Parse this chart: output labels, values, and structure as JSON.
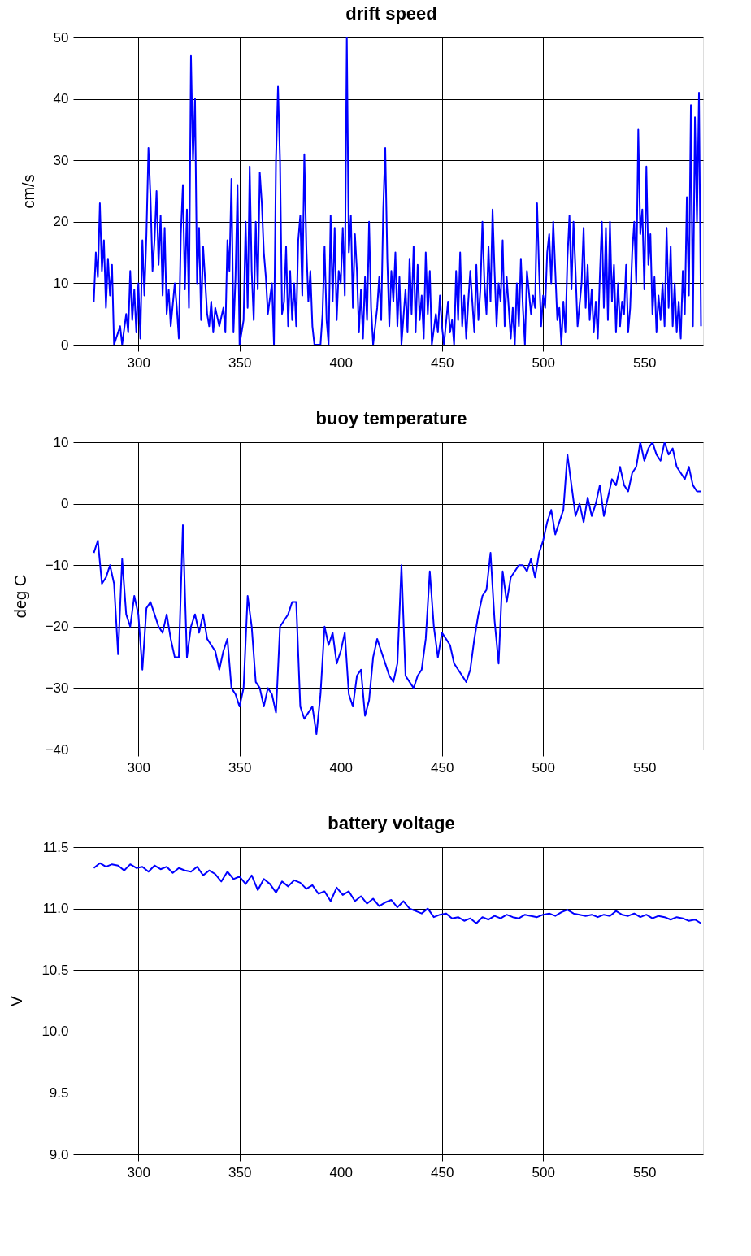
{
  "chart_data": [
    {
      "type": "line",
      "title": "drift speed",
      "ylabel": "cm/s",
      "xlim": [
        271,
        579
      ],
      "ylim": [
        0,
        50
      ],
      "xticks": [
        300,
        350,
        400,
        450,
        500,
        550
      ],
      "yticks": [
        0,
        10,
        20,
        30,
        40,
        50
      ],
      "grid": true,
      "x": [
        278,
        279,
        280,
        281,
        282,
        283,
        284,
        285,
        286,
        287,
        288,
        289,
        291,
        292,
        294,
        295,
        296,
        297,
        298,
        299,
        300,
        301,
        302,
        303,
        304,
        305,
        306,
        307,
        308,
        309,
        310,
        311,
        312,
        313,
        314,
        315,
        316,
        318,
        319,
        320,
        321,
        322,
        323,
        324,
        325,
        326,
        327,
        328,
        329,
        330,
        331,
        332,
        334,
        335,
        336,
        337,
        338,
        340,
        342,
        343,
        344,
        345,
        346,
        347,
        348,
        349,
        350,
        352,
        353,
        354,
        355,
        356,
        357,
        358,
        359,
        360,
        361,
        362,
        363,
        364,
        366,
        367,
        368,
        369,
        370,
        371,
        372,
        373,
        374,
        375,
        376,
        377,
        378,
        379,
        380,
        381,
        382,
        383,
        384,
        385,
        386,
        387,
        390,
        391,
        392,
        393,
        394,
        395,
        396,
        397,
        398,
        399,
        400,
        401,
        402,
        403,
        404,
        405,
        406,
        407,
        408,
        409,
        410,
        411,
        412,
        413,
        414,
        415,
        416,
        418,
        419,
        420,
        421,
        422,
        423,
        424,
        425,
        426,
        427,
        428,
        429,
        430,
        432,
        433,
        434,
        435,
        436,
        437,
        438,
        439,
        440,
        441,
        442,
        443,
        444,
        445,
        447,
        448,
        449,
        450,
        451,
        453,
        454,
        455,
        456,
        457,
        458,
        459,
        460,
        461,
        462,
        463,
        464,
        466,
        467,
        468,
        469,
        470,
        471,
        472,
        473,
        474,
        475,
        476,
        477,
        478,
        479,
        480,
        481,
        482,
        484,
        485,
        486,
        487,
        488,
        489,
        490,
        491,
        492,
        494,
        495,
        496,
        497,
        498,
        499,
        500,
        501,
        502,
        503,
        504,
        505,
        506,
        507,
        508,
        509,
        510,
        511,
        512,
        513,
        514,
        515,
        516,
        517,
        519,
        520,
        521,
        522,
        523,
        524,
        525,
        526,
        527,
        528,
        529,
        530,
        531,
        532,
        533,
        534,
        535,
        536,
        537,
        538,
        539,
        540,
        541,
        542,
        543,
        544,
        545,
        546,
        547,
        548,
        549,
        550,
        551,
        552,
        553,
        554,
        555,
        556,
        557,
        558,
        559,
        560,
        561,
        562,
        563,
        564,
        565,
        566,
        567,
        568,
        569,
        570,
        571,
        572,
        573,
        574,
        575,
        576,
        577,
        578
      ],
      "series": [
        {
          "color": "#0000ff",
          "values": [
            7,
            15,
            11,
            23,
            12,
            17,
            6,
            14,
            8,
            13,
            0,
            1,
            3,
            0,
            5,
            2,
            12,
            4,
            9,
            2,
            10,
            1,
            17,
            8,
            18,
            32,
            24,
            12,
            17,
            25,
            13,
            21,
            8,
            19,
            5,
            9,
            3,
            10,
            6,
            1,
            18,
            26,
            9,
            22,
            6,
            47,
            30,
            40,
            10,
            19,
            4,
            16,
            5,
            3,
            7,
            2,
            6,
            3,
            6,
            2,
            17,
            12,
            27,
            2,
            11,
            26,
            0,
            4,
            20,
            6,
            29,
            12,
            4,
            20,
            9,
            28,
            23,
            15,
            11,
            5,
            10,
            0,
            30,
            42,
            30,
            5,
            7,
            16,
            3,
            12,
            4,
            10,
            3,
            17,
            21,
            8,
            31,
            16,
            7,
            12,
            3,
            0,
            0,
            5,
            16,
            4,
            0,
            21,
            7,
            19,
            4,
            12,
            10,
            19,
            8,
            50,
            15,
            21,
            6,
            18,
            12,
            2,
            9,
            1,
            11,
            4,
            20,
            6,
            0,
            6,
            11,
            4,
            22,
            32,
            14,
            3,
            12,
            7,
            15,
            3,
            11,
            0,
            9,
            2,
            14,
            5,
            16,
            2,
            13,
            4,
            8,
            1,
            15,
            5,
            12,
            0,
            5,
            2,
            8,
            3,
            0,
            7,
            2,
            4,
            0,
            12,
            4,
            15,
            3,
            8,
            1,
            7,
            12,
            2,
            13,
            4,
            9,
            20,
            10,
            5,
            16,
            7,
            22,
            12,
            3,
            10,
            7,
            17,
            3,
            11,
            1,
            6,
            0,
            10,
            3,
            14,
            6,
            0,
            12,
            5,
            8,
            6,
            23,
            12,
            3,
            8,
            6,
            15,
            18,
            10,
            20,
            12,
            4,
            6,
            0,
            7,
            2,
            14,
            21,
            9,
            20,
            12,
            3,
            10,
            19,
            6,
            13,
            4,
            9,
            2,
            7,
            1,
            11,
            20,
            6,
            19,
            4,
            20,
            7,
            13,
            2,
            10,
            3,
            7,
            5,
            13,
            2,
            6,
            15,
            20,
            10,
            35,
            18,
            22,
            9,
            29,
            13,
            18,
            5,
            11,
            2,
            8,
            4,
            10,
            3,
            19,
            6,
            16,
            3,
            10,
            2,
            7,
            1,
            12,
            5,
            24,
            8,
            39,
            3,
            37,
            20,
            41,
            3
          ]
        }
      ]
    },
    {
      "type": "line",
      "title": "buoy temperature",
      "ylabel": "deg C",
      "xlim": [
        271,
        579
      ],
      "ylim": [
        -40,
        10
      ],
      "xticks": [
        300,
        350,
        400,
        450,
        500,
        550
      ],
      "yticks": [
        -40,
        -30,
        -20,
        -10,
        0,
        10
      ],
      "grid": true,
      "x": [
        278,
        280,
        282,
        284,
        286,
        288,
        290,
        292,
        294,
        296,
        298,
        300,
        302,
        304,
        306,
        308,
        310,
        312,
        314,
        316,
        318,
        320,
        322,
        324,
        326,
        328,
        330,
        332,
        334,
        336,
        338,
        340,
        342,
        344,
        346,
        348,
        350,
        352,
        354,
        356,
        358,
        360,
        362,
        364,
        366,
        368,
        370,
        372,
        374,
        376,
        378,
        380,
        382,
        384,
        386,
        388,
        390,
        392,
        394,
        396,
        398,
        400,
        402,
        404,
        406,
        408,
        410,
        412,
        414,
        416,
        418,
        420,
        422,
        424,
        426,
        428,
        430,
        432,
        434,
        436,
        438,
        440,
        442,
        444,
        446,
        448,
        450,
        452,
        454,
        456,
        458,
        460,
        462,
        464,
        466,
        468,
        470,
        472,
        474,
        476,
        478,
        480,
        482,
        484,
        486,
        488,
        490,
        492,
        494,
        496,
        498,
        500,
        502,
        504,
        506,
        508,
        510,
        512,
        514,
        516,
        518,
        520,
        522,
        524,
        526,
        528,
        530,
        532,
        534,
        536,
        538,
        540,
        542,
        544,
        546,
        548,
        550,
        552,
        554,
        556,
        558,
        560,
        562,
        564,
        566,
        568,
        570,
        572,
        574,
        576,
        578
      ],
      "series": [
        {
          "color": "#0000ff",
          "values": [
            -8,
            -6,
            -13,
            -12,
            -10,
            -13,
            -24.5,
            -9,
            -18,
            -20,
            -15,
            -18,
            -27,
            -17,
            -16,
            -18,
            -20,
            -21,
            -18,
            -22,
            -25,
            -25,
            -3.5,
            -25,
            -20,
            -18,
            -21,
            -18,
            -22,
            -23,
            -24,
            -27,
            -24,
            -22,
            -30,
            -31,
            -33,
            -30,
            -15,
            -20,
            -29,
            -30,
            -33,
            -30,
            -31,
            -34,
            -20,
            -19,
            -18,
            -16,
            -16,
            -33,
            -35,
            -34,
            -33,
            -37.5,
            -31,
            -20,
            -23,
            -21,
            -26,
            -24,
            -21,
            -31,
            -33,
            -28,
            -27,
            -34.5,
            -32,
            -25,
            -22,
            -24,
            -26,
            -28,
            -29,
            -26,
            -10,
            -28,
            -29,
            -30,
            -28,
            -27,
            -22,
            -11,
            -20,
            -25,
            -21,
            -22,
            -23,
            -26,
            -27,
            -28,
            -29,
            -27,
            -22,
            -18,
            -15,
            -14,
            -8,
            -19,
            -26,
            -11,
            -16,
            -12,
            -11,
            -10,
            -10,
            -11,
            -9,
            -12,
            -8,
            -6,
            -3,
            -1,
            -5,
            -3,
            -1,
            8,
            3,
            -2,
            0,
            -3,
            1,
            -2,
            0,
            3,
            -2,
            1,
            4,
            3,
            6,
            3,
            2,
            5,
            6,
            10,
            7,
            9,
            10,
            8,
            7,
            10,
            8,
            9,
            6,
            5,
            4,
            6,
            3,
            2,
            2
          ]
        }
      ]
    },
    {
      "type": "line",
      "title": "battery voltage",
      "ylabel": "V",
      "xlim": [
        271,
        579
      ],
      "ylim": [
        9.0,
        11.5
      ],
      "xticks": [
        300,
        350,
        400,
        450,
        500,
        550
      ],
      "yticks": [
        {
          "value": 9.0,
          "label": "9.0"
        },
        {
          "value": 9.5,
          "label": "9.5"
        },
        {
          "value": 10.0,
          "label": "10.0"
        },
        {
          "value": 10.5,
          "label": "10.5"
        },
        {
          "value": 11.0,
          "label": "11.0"
        },
        {
          "value": 11.5,
          "label": "11.5"
        }
      ],
      "grid": true,
      "x": [
        278,
        281,
        284,
        287,
        290,
        293,
        296,
        299,
        302,
        305,
        308,
        311,
        314,
        317,
        320,
        323,
        326,
        329,
        332,
        335,
        338,
        341,
        344,
        347,
        350,
        353,
        356,
        359,
        362,
        365,
        368,
        371,
        374,
        377,
        380,
        383,
        386,
        389,
        392,
        395,
        398,
        401,
        404,
        407,
        410,
        413,
        416,
        419,
        422,
        425,
        428,
        431,
        434,
        437,
        440,
        443,
        446,
        449,
        452,
        455,
        458,
        461,
        464,
        467,
        470,
        473,
        476,
        479,
        482,
        485,
        488,
        491,
        494,
        497,
        500,
        503,
        506,
        509,
        512,
        515,
        518,
        521,
        524,
        527,
        530,
        533,
        536,
        539,
        542,
        545,
        548,
        551,
        554,
        557,
        560,
        563,
        566,
        569,
        572,
        575,
        578
      ],
      "series": [
        {
          "color": "#0000ff",
          "values": [
            11.33,
            11.37,
            11.34,
            11.36,
            11.35,
            11.31,
            11.36,
            11.33,
            11.34,
            11.3,
            11.35,
            11.32,
            11.34,
            11.29,
            11.33,
            11.31,
            11.3,
            11.34,
            11.27,
            11.31,
            11.28,
            11.22,
            11.3,
            11.24,
            11.26,
            11.2,
            11.27,
            11.15,
            11.24,
            11.2,
            11.13,
            11.22,
            11.18,
            11.23,
            11.21,
            11.16,
            11.19,
            11.12,
            11.14,
            11.06,
            11.17,
            11.11,
            11.14,
            11.06,
            11.1,
            11.04,
            11.08,
            11.02,
            11.05,
            11.07,
            11.01,
            11.06,
            11.0,
            10.98,
            10.96,
            11.0,
            10.93,
            10.95,
            10.96,
            10.92,
            10.93,
            10.9,
            10.92,
            10.88,
            10.93,
            10.91,
            10.94,
            10.92,
            10.95,
            10.93,
            10.92,
            10.95,
            10.94,
            10.93,
            10.95,
            10.96,
            10.94,
            10.97,
            10.99,
            10.96,
            10.95,
            10.94,
            10.95,
            10.93,
            10.95,
            10.94,
            10.98,
            10.95,
            10.94,
            10.96,
            10.93,
            10.95,
            10.92,
            10.94,
            10.93,
            10.91,
            10.93,
            10.92,
            10.9,
            10.91,
            10.88
          ]
        }
      ]
    }
  ]
}
